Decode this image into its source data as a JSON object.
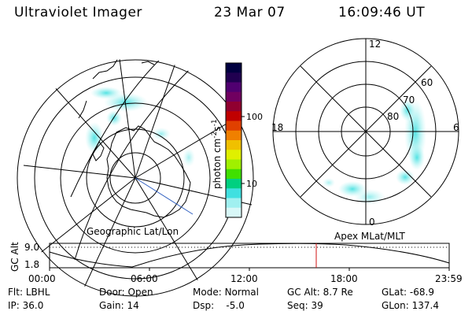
{
  "header": {
    "instrument": "Ultraviolet Imager",
    "date": "23 Mar 07",
    "time": "16:09:46 UT"
  },
  "colorbar": {
    "unit_label": "photon cm",
    "unit_exp1": "-2",
    "unit_mid": "s",
    "unit_exp2": "-1",
    "ticks": [
      "100",
      "10"
    ],
    "colors": [
      "#000040",
      "#200050",
      "#500070",
      "#700060",
      "#900030",
      "#c00000",
      "#e04000",
      "#f08000",
      "#f0c000",
      "#e0f000",
      "#a0f000",
      "#40e000",
      "#00d080",
      "#40e0e0",
      "#a0f0f0",
      "#d8f8f8"
    ]
  },
  "left_panel": {
    "label": "Geographic Lat/Lon"
  },
  "right_panel": {
    "label": "Apex MLat/MLT",
    "mlt_labels": {
      "top": "12",
      "left": "18",
      "right": "6",
      "bottom": "0"
    },
    "mlat_labels": [
      "60",
      "70",
      "80"
    ]
  },
  "timeline": {
    "ylabel": "GC Alt",
    "yticks": [
      "9.0",
      "1.8"
    ],
    "xticks": [
      "00:00",
      "06:00",
      "12:00",
      "18:00",
      "23:59"
    ]
  },
  "status": {
    "row1": [
      {
        "key": "Flt:",
        "value": "LBHL"
      },
      {
        "key": "Door:",
        "value": "Open"
      },
      {
        "key": "Mode:",
        "value": "Normal"
      },
      {
        "key": "GC Alt:",
        "value": "8.7 Re"
      },
      {
        "key": "GLat:",
        "value": "-68.9"
      }
    ],
    "row2": [
      {
        "key": "IP:",
        "value": "36.0"
      },
      {
        "key": "Gain:",
        "value": "14"
      },
      {
        "key": "Dsp:",
        "value": "-5.0"
      },
      {
        "key": "Seq:",
        "value": "39"
      },
      {
        "key": "GLon:",
        "value": "137.4"
      }
    ]
  }
}
